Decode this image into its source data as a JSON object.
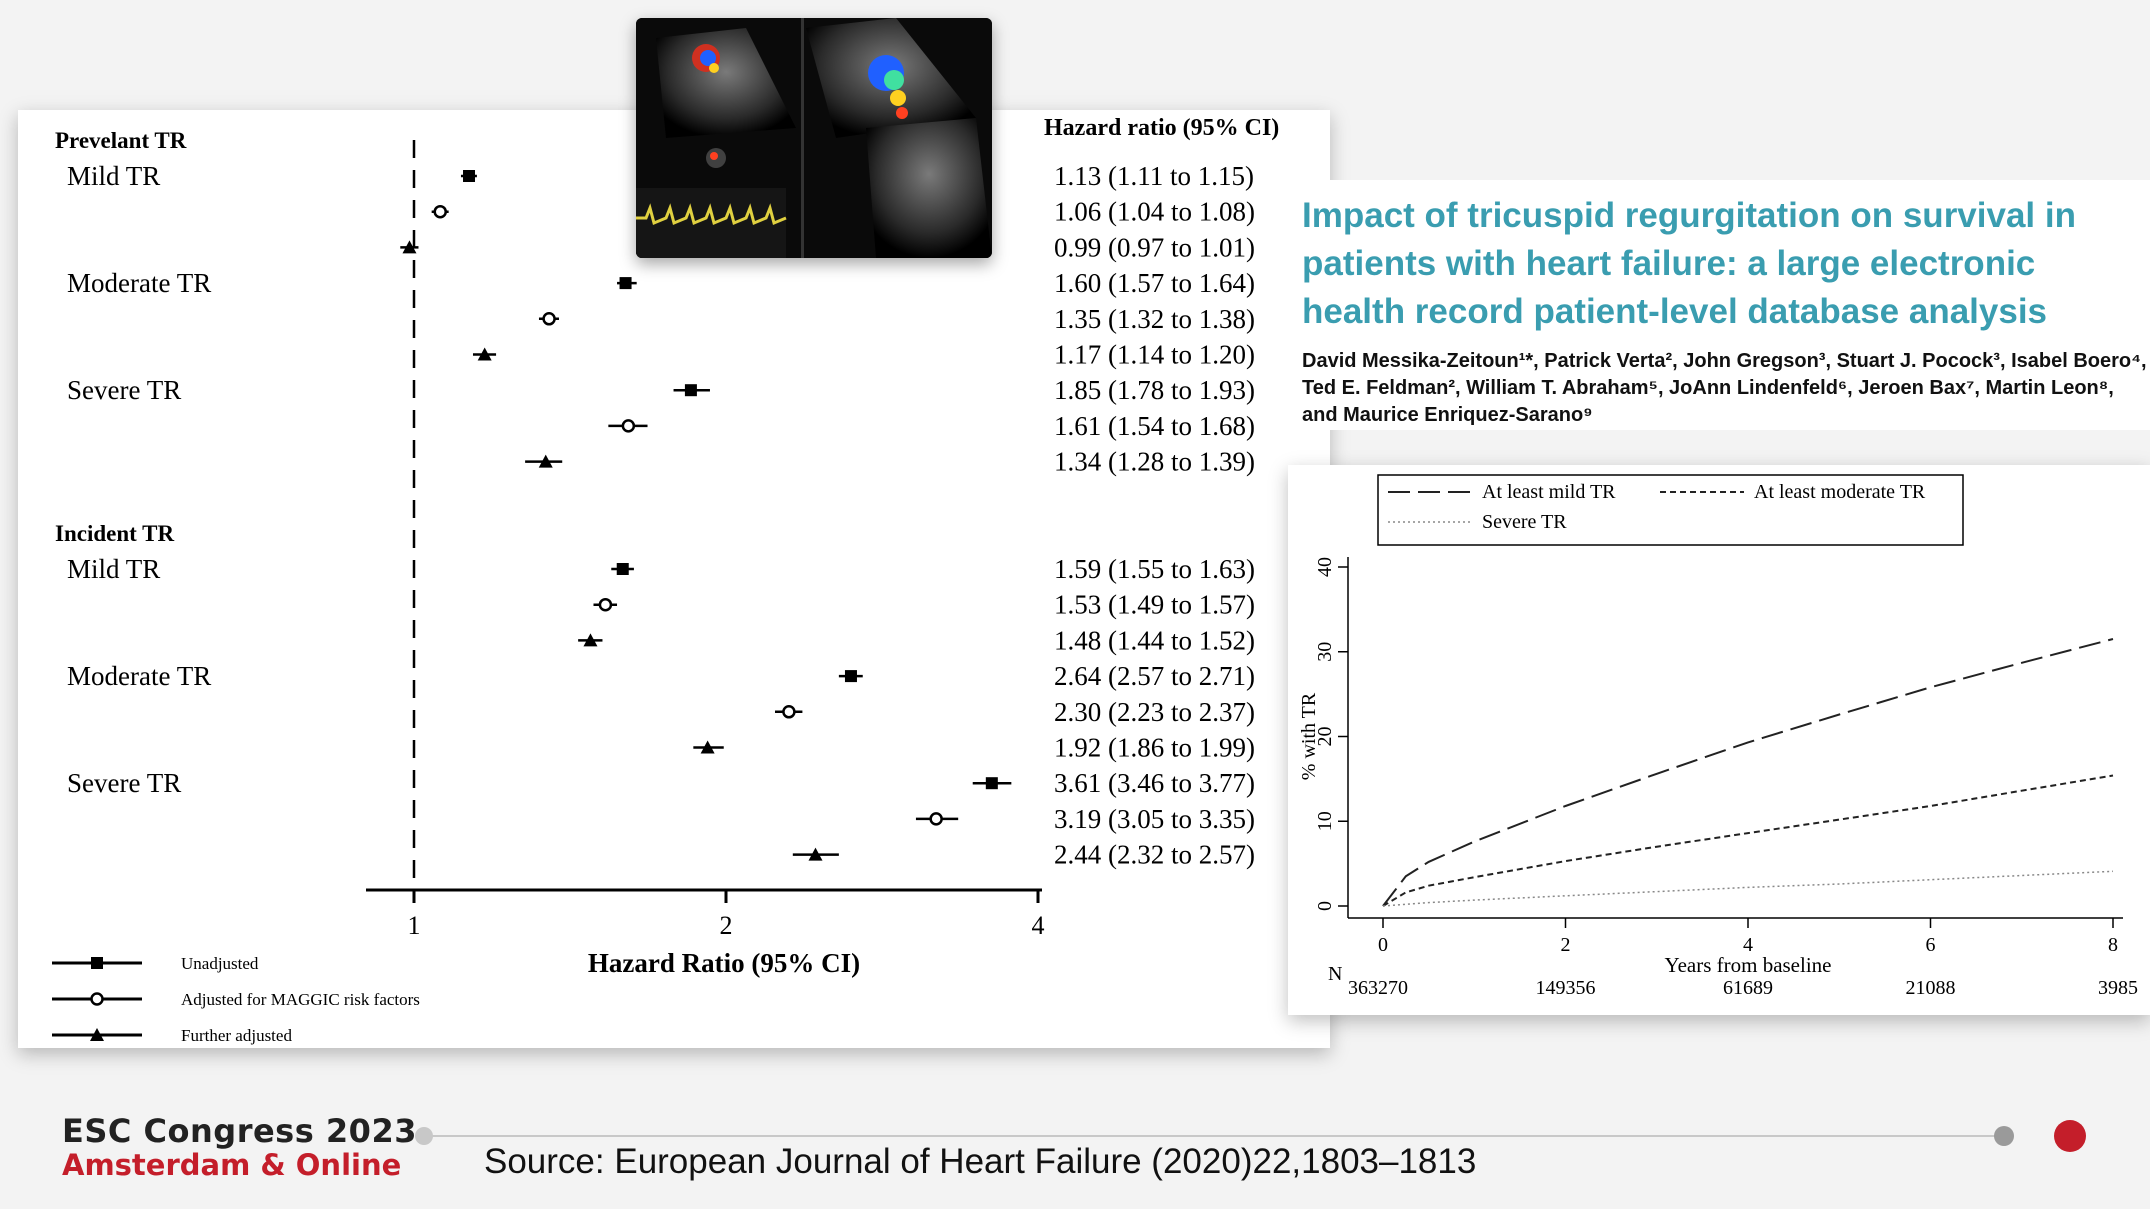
{
  "forest": {
    "header": "Hazard ratio (95% CI)",
    "xlabel": "Hazard Ratio (95% CI)",
    "ticks": [
      "1",
      "2",
      "4"
    ],
    "groups": [
      {
        "label": "Prevelant TR",
        "rows": [
          {
            "label": "Mild TR",
            "items": [
              {
                "marker": "square",
                "hr": 1.13,
                "lo": 1.11,
                "hi": 1.15,
                "text": "1.13 (1.11 to 1.15)"
              },
              {
                "marker": "circle",
                "hr": 1.06,
                "lo": 1.04,
                "hi": 1.08,
                "text": "1.06 (1.04 to 1.08)"
              },
              {
                "marker": "triangle",
                "hr": 0.99,
                "lo": 0.97,
                "hi": 1.01,
                "text": "0.99 (0.97 to 1.01)"
              }
            ]
          },
          {
            "label": "Moderate TR",
            "items": [
              {
                "marker": "square",
                "hr": 1.6,
                "lo": 1.57,
                "hi": 1.64,
                "text": "1.60 (1.57 to 1.64)"
              },
              {
                "marker": "circle",
                "hr": 1.35,
                "lo": 1.32,
                "hi": 1.38,
                "text": "1.35 (1.32 to 1.38)"
              },
              {
                "marker": "triangle",
                "hr": 1.17,
                "lo": 1.14,
                "hi": 1.2,
                "text": "1.17 (1.14 to 1.20)"
              }
            ]
          },
          {
            "label": "Severe TR",
            "items": [
              {
                "marker": "square",
                "hr": 1.85,
                "lo": 1.78,
                "hi": 1.93,
                "text": "1.85 (1.78 to 1.93)"
              },
              {
                "marker": "circle",
                "hr": 1.61,
                "lo": 1.54,
                "hi": 1.68,
                "text": "1.61 (1.54 to 1.68)"
              },
              {
                "marker": "triangle",
                "hr": 1.34,
                "lo": 1.28,
                "hi": 1.39,
                "text": "1.34 (1.28 to 1.39)"
              }
            ]
          }
        ]
      },
      {
        "label": "Incident TR",
        "rows": [
          {
            "label": "Mild TR",
            "items": [
              {
                "marker": "square",
                "hr": 1.59,
                "lo": 1.55,
                "hi": 1.63,
                "text": "1.59 (1.55 to 1.63)"
              },
              {
                "marker": "circle",
                "hr": 1.53,
                "lo": 1.49,
                "hi": 1.57,
                "text": "1.53 (1.49 to 1.57)"
              },
              {
                "marker": "triangle",
                "hr": 1.48,
                "lo": 1.44,
                "hi": 1.52,
                "text": "1.48 (1.44 to 1.52)"
              }
            ]
          },
          {
            "label": "Moderate TR",
            "items": [
              {
                "marker": "square",
                "hr": 2.64,
                "lo": 2.57,
                "hi": 2.71,
                "text": "2.64 (2.57 to 2.71)"
              },
              {
                "marker": "circle",
                "hr": 2.3,
                "lo": 2.23,
                "hi": 2.37,
                "text": "2.30 (2.23 to 2.37)"
              },
              {
                "marker": "triangle",
                "hr": 1.92,
                "lo": 1.86,
                "hi": 1.99,
                "text": "1.92 (1.86 to 1.99)"
              }
            ]
          },
          {
            "label": "Severe TR",
            "items": [
              {
                "marker": "square",
                "hr": 3.61,
                "lo": 3.46,
                "hi": 3.77,
                "text": "3.61 (3.46 to 3.77)"
              },
              {
                "marker": "circle",
                "hr": 3.19,
                "lo": 3.05,
                "hi": 3.35,
                "text": "3.19 (3.05 to 3.35)"
              },
              {
                "marker": "triangle",
                "hr": 2.44,
                "lo": 2.32,
                "hi": 2.57,
                "text": "2.44 (2.32 to 2.57)"
              }
            ]
          }
        ]
      }
    ],
    "legend": [
      {
        "marker": "square",
        "label": "Unadjusted"
      },
      {
        "marker": "circle",
        "label": "Adjusted for MAGGIC risk factors"
      },
      {
        "marker": "triangle",
        "label": "Further adjusted"
      }
    ]
  },
  "paper": {
    "title": "Impact of tricuspid regurgitation on survival in patients with heart failure: a large electronic health record patient-level database analysis",
    "authors": "David Messika-Zeitoun¹*, Patrick Verta², John Gregson³, Stuart J. Pocock³, Isabel Boero⁴, Ted E. Feldman², William T. Abraham⁵, JoAnn Lindenfeld⁶, Jeroen Bax⁷, Martin Leon⁸, and Maurice Enriquez-Sarano⁹"
  },
  "chart_data": [
    {
      "type": "scatter",
      "title": "",
      "xlabel": "Hazard Ratio (95% CI)",
      "xscale": "log",
      "xticks": [
        1,
        2,
        4
      ],
      "reference_line": 1,
      "series": [
        {
          "name": "Unadjusted",
          "categories": [
            "Prevelant Mild TR",
            "Prevelant Moderate TR",
            "Prevelant Severe TR",
            "Incident Mild TR",
            "Incident Moderate TR",
            "Incident Severe TR"
          ],
          "values": [
            1.13,
            1.6,
            1.85,
            1.59,
            2.64,
            3.61
          ]
        },
        {
          "name": "Adjusted for MAGGIC risk factors",
          "categories": [
            "Prevelant Mild TR",
            "Prevelant Moderate TR",
            "Prevelant Severe TR",
            "Incident Mild TR",
            "Incident Moderate TR",
            "Incident Severe TR"
          ],
          "values": [
            1.06,
            1.35,
            1.61,
            1.53,
            2.3,
            3.19
          ]
        },
        {
          "name": "Further adjusted",
          "categories": [
            "Prevelant Mild TR",
            "Prevelant Moderate TR",
            "Prevelant Severe TR",
            "Incident Mild TR",
            "Incident Moderate TR",
            "Incident Severe TR"
          ],
          "values": [
            0.99,
            1.17,
            1.34,
            1.48,
            1.92,
            2.44
          ]
        }
      ]
    },
    {
      "type": "line",
      "title": "",
      "xlabel": "Years from baseline",
      "ylabel": "% with TR",
      "xlim": [
        0,
        8
      ],
      "ylim": [
        0,
        40
      ],
      "xticks": [
        "0",
        "2",
        "4",
        "6",
        "8"
      ],
      "yticks": [
        "0",
        "10",
        "20",
        "30",
        "40"
      ],
      "legend_position": "top-left",
      "series": [
        {
          "name": "At least mild TR",
          "x": [
            0,
            0.25,
            0.5,
            1,
            2,
            3,
            4,
            5,
            6,
            7,
            8
          ],
          "y": [
            0,
            3.5,
            5.2,
            7.6,
            11.8,
            15.6,
            19.3,
            22.6,
            25.8,
            28.7,
            31.5
          ]
        },
        {
          "name": "At least moderate TR",
          "x": [
            0,
            0.25,
            0.5,
            1,
            2,
            3,
            4,
            5,
            6,
            7,
            8
          ],
          "y": [
            0,
            1.6,
            2.4,
            3.4,
            5.3,
            7.0,
            8.6,
            10.2,
            11.8,
            13.6,
            15.4
          ]
        },
        {
          "name": "Severe TR",
          "x": [
            0,
            0.5,
            1,
            2,
            3,
            4,
            5,
            6,
            7,
            8
          ],
          "y": [
            0,
            0.4,
            0.7,
            1.2,
            1.7,
            2.2,
            2.6,
            3.1,
            3.6,
            4.1
          ]
        }
      ],
      "at_risk": {
        "label": "N",
        "x": [
          "0",
          "2",
          "4",
          "6",
          "8"
        ],
        "values": [
          "363270",
          "149356",
          "61689",
          "21088",
          "3985"
        ]
      }
    }
  ],
  "footer": {
    "congress": "ESC Congress 2023",
    "location": "Amsterdam & Online",
    "source": "Source: European Journal of Heart Failure (2020)22,1803–1813",
    "colors": {
      "brand_red": "#c41e2a",
      "title_teal": "#3a9db0"
    }
  }
}
